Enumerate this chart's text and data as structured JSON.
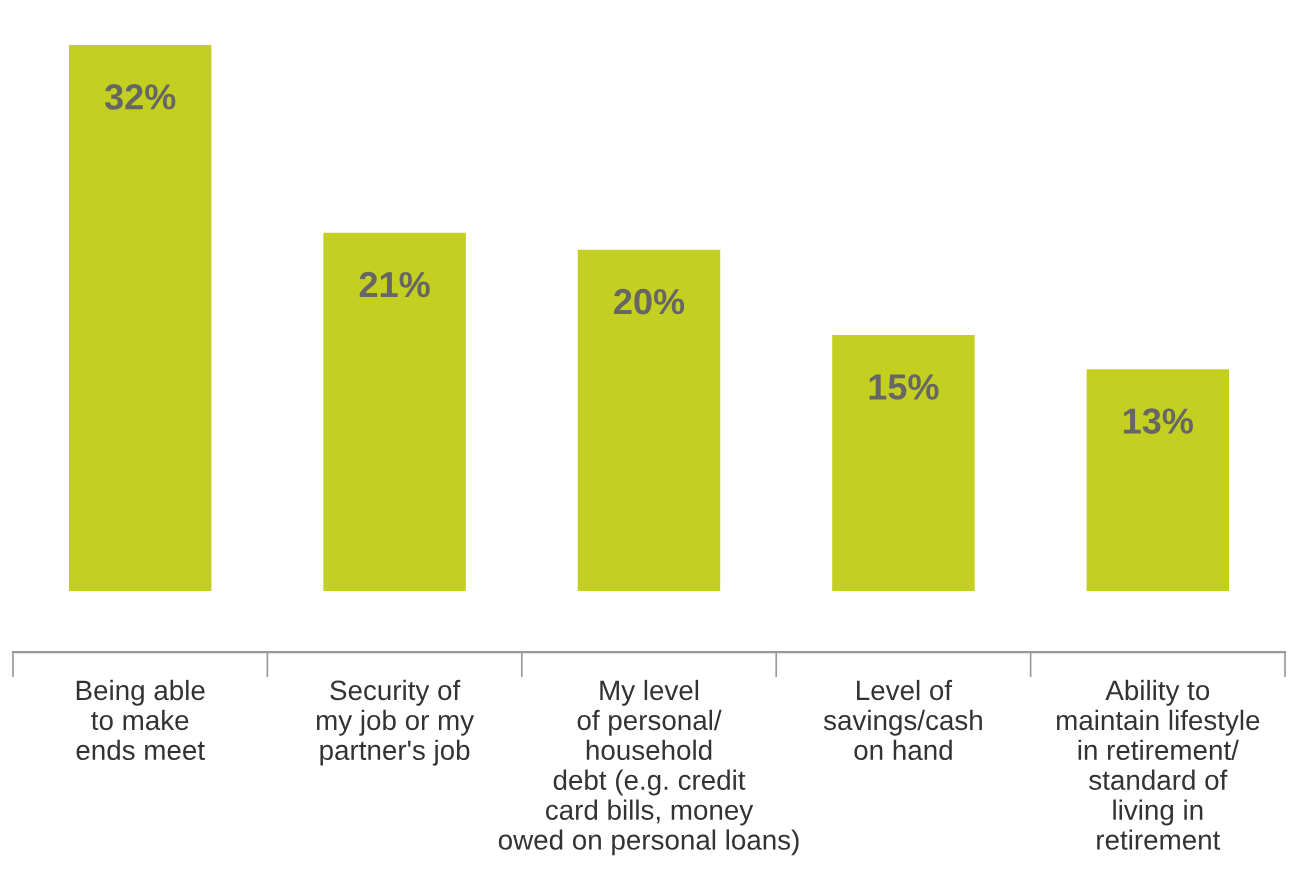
{
  "chart_data": {
    "type": "bar",
    "categories": [
      "Being able\nto make\nends meet",
      "Security of\nmy job or my\npartner's job",
      "My level\nof personal/\nhousehold\ndebt (e.g. credit\ncard bills, money\nowed on personal loans)",
      "Level of\nsavings/cash\non hand",
      "Ability to\nmaintain lifestyle\nin retirement/\nstandard of\nliving in\nretirement"
    ],
    "values": [
      32,
      21,
      20,
      15,
      13
    ],
    "value_labels": [
      "32%",
      "21%",
      "20%",
      "15%",
      "13%"
    ],
    "color": "#c3cf21",
    "grid": false,
    "legend": false
  }
}
